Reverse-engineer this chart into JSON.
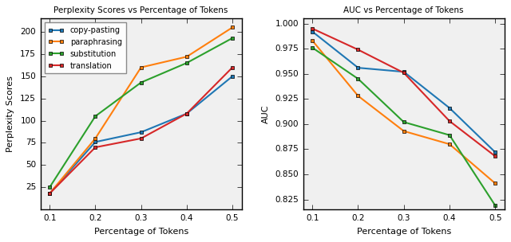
{
  "x": [
    0.1,
    0.2,
    0.3,
    0.4,
    0.5
  ],
  "perplexity": {
    "copy-pasting": [
      18,
      76,
      87,
      108,
      150
    ],
    "paraphrasing": [
      18,
      80,
      160,
      172,
      205
    ],
    "substitution": [
      25,
      105,
      143,
      165,
      193
    ],
    "translation": [
      18,
      70,
      80,
      108,
      160
    ]
  },
  "auc": {
    "copy-pasting": [
      0.992,
      0.956,
      0.952,
      0.916,
      0.872
    ],
    "paraphrasing": [
      0.983,
      0.928,
      0.893,
      0.88,
      0.841
    ],
    "substitution": [
      0.976,
      0.945,
      0.902,
      0.889,
      0.819
    ],
    "translation": [
      0.995,
      0.974,
      0.951,
      0.903,
      0.868
    ]
  },
  "colors": {
    "copy-pasting": "#1f77b4",
    "paraphrasing": "#ff7f0e",
    "substitution": "#2ca02c",
    "translation": "#d62728"
  },
  "labels": [
    "copy-pasting",
    "paraphrasing",
    "substitution",
    "translation"
  ],
  "title_left": "Perplexity Scores vs Percentage of Tokens",
  "title_right": "AUC vs Percentage of Tokens",
  "xlabel": "Percentage of Tokens",
  "ylabel_left": "Perplexity Scores",
  "ylabel_right": "AUC",
  "ylim_left": [
    0,
    215
  ],
  "yticks_left": [
    25,
    50,
    75,
    100,
    125,
    150,
    175,
    200
  ],
  "ylim_right": [
    0.815,
    1.005
  ],
  "yticks_right": [
    0.825,
    0.85,
    0.875,
    0.9,
    0.925,
    0.95,
    0.975,
    1.0
  ]
}
